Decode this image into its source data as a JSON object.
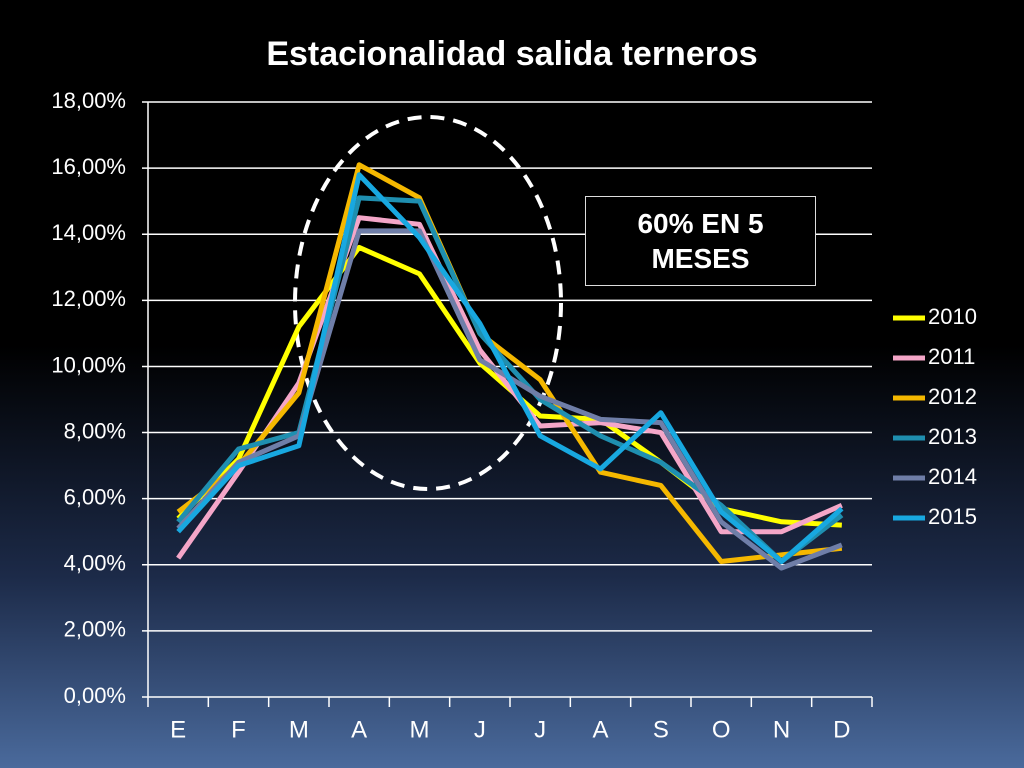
{
  "chart_data": {
    "type": "line",
    "title": "Estacionalidad salida terneros",
    "categories": [
      "E",
      "F",
      "M",
      "A",
      "M",
      "J",
      "J",
      "A",
      "S",
      "O",
      "N",
      "D"
    ],
    "series": [
      {
        "name": "2010",
        "color": "#ffff00",
        "values": [
          5.4,
          7.2,
          11.2,
          13.6,
          12.8,
          10.1,
          8.5,
          8.4,
          7.1,
          5.7,
          5.3,
          5.2
        ]
      },
      {
        "name": "2011",
        "color": "#f4a6c8",
        "values": [
          4.2,
          6.8,
          9.5,
          14.5,
          14.3,
          10.5,
          8.2,
          8.3,
          8.0,
          5.0,
          5.0,
          5.8
        ]
      },
      {
        "name": "2012",
        "color": "#f5b800",
        "values": [
          5.6,
          7.0,
          9.2,
          16.1,
          15.1,
          11.0,
          9.6,
          6.8,
          6.4,
          4.1,
          4.3,
          4.5
        ]
      },
      {
        "name": "2013",
        "color": "#1f8fb0",
        "values": [
          5.3,
          7.5,
          8.0,
          15.1,
          15.0,
          11.0,
          9.0,
          7.9,
          7.1,
          5.8,
          4.1,
          5.5
        ]
      },
      {
        "name": "2014",
        "color": "#6f7ea8",
        "values": [
          5.1,
          7.1,
          7.9,
          14.1,
          14.1,
          10.2,
          9.1,
          8.4,
          8.3,
          5.3,
          3.9,
          4.6
        ]
      },
      {
        "name": "2015",
        "color": "#18a8e0",
        "values": [
          5.0,
          7.0,
          7.6,
          15.8,
          13.9,
          11.3,
          7.9,
          6.9,
          8.6,
          5.6,
          4.1,
          5.7
        ]
      }
    ],
    "ylim": [
      0,
      18
    ],
    "yticks": [
      {
        "value": 0,
        "label": "0,00%"
      },
      {
        "value": 2,
        "label": "2,00%"
      },
      {
        "value": 4,
        "label": "4,00%"
      },
      {
        "value": 6,
        "label": "6,00%"
      },
      {
        "value": 8,
        "label": "8,00%"
      },
      {
        "value": 10,
        "label": "10,00%"
      },
      {
        "value": 12,
        "label": "12,00%"
      },
      {
        "value": 14,
        "label": "14,00%"
      },
      {
        "value": 16,
        "label": "16,00%"
      },
      {
        "value": 18,
        "label": "18,00%"
      }
    ],
    "grid": true,
    "annotation": "60% EN 5 MESES"
  }
}
